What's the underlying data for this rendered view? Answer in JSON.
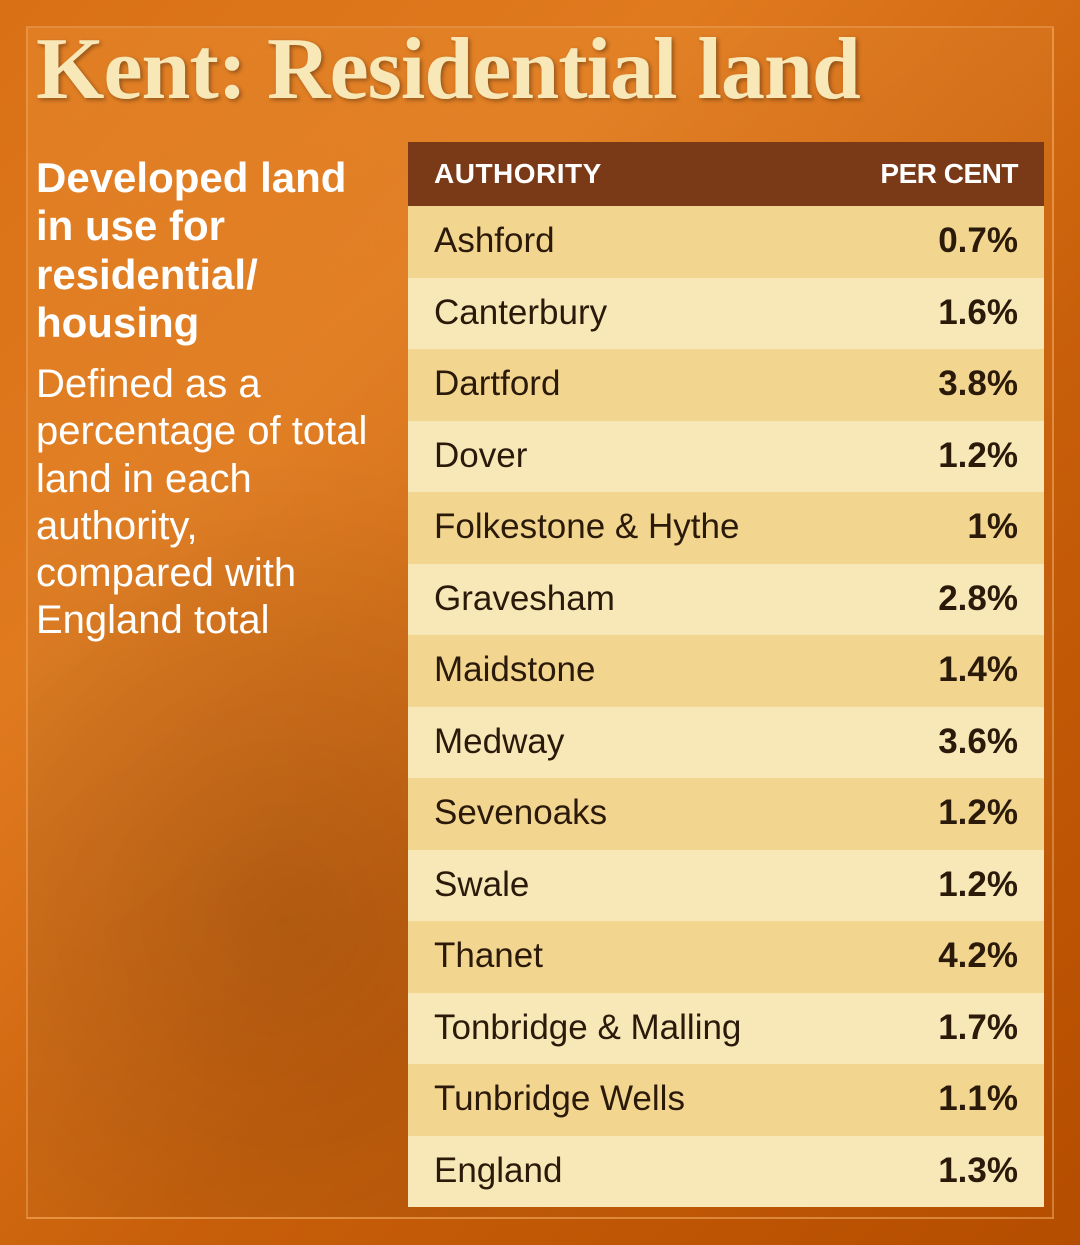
{
  "title": "Kent: Residential land",
  "subtitle_strong": "Developed land in use for residential/ housing",
  "subtitle_light": "Defined as a percentage of total land in each authority, compared with England total",
  "table": {
    "header_authority": "AUTHORITY",
    "header_percent": "PER CENT",
    "header_bg": "#7a3a17",
    "row_bg_odd": "#f2d690",
    "row_bg_even": "#f8e8b8",
    "row_text_color": "#2b1a0a",
    "header_text_color": "#ffffff",
    "rows": [
      {
        "authority": "Ashford",
        "percent": "0.7%"
      },
      {
        "authority": "Canterbury",
        "percent": "1.6%"
      },
      {
        "authority": "Dartford",
        "percent": "3.8%"
      },
      {
        "authority": "Dover",
        "percent": "1.2%"
      },
      {
        "authority": "Folkestone & Hythe",
        "percent": "1%"
      },
      {
        "authority": "Gravesham",
        "percent": "2.8%"
      },
      {
        "authority": "Maidstone",
        "percent": "1.4%"
      },
      {
        "authority": "Medway",
        "percent": "3.6%"
      },
      {
        "authority": "Sevenoaks",
        "percent": "1.2%"
      },
      {
        "authority": "Swale",
        "percent": "1.2%"
      },
      {
        "authority": "Thanet",
        "percent": "4.2%"
      },
      {
        "authority": "Tonbridge & Malling",
        "percent": "1.7%"
      },
      {
        "authority": "Tunbridge Wells",
        "percent": "1.1%"
      },
      {
        "authority": "England",
        "percent": "1.3%"
      }
    ]
  },
  "colors": {
    "title_color": "#f8e8b8",
    "side_text_color": "#ffffff",
    "bg_gradient_from": "#d97016",
    "bg_gradient_to": "#b54d00"
  },
  "typography": {
    "title_fontsize": 88,
    "subtitle_strong_fontsize": 42,
    "subtitle_light_fontsize": 40,
    "header_fontsize": 28,
    "row_fontsize": 35
  }
}
